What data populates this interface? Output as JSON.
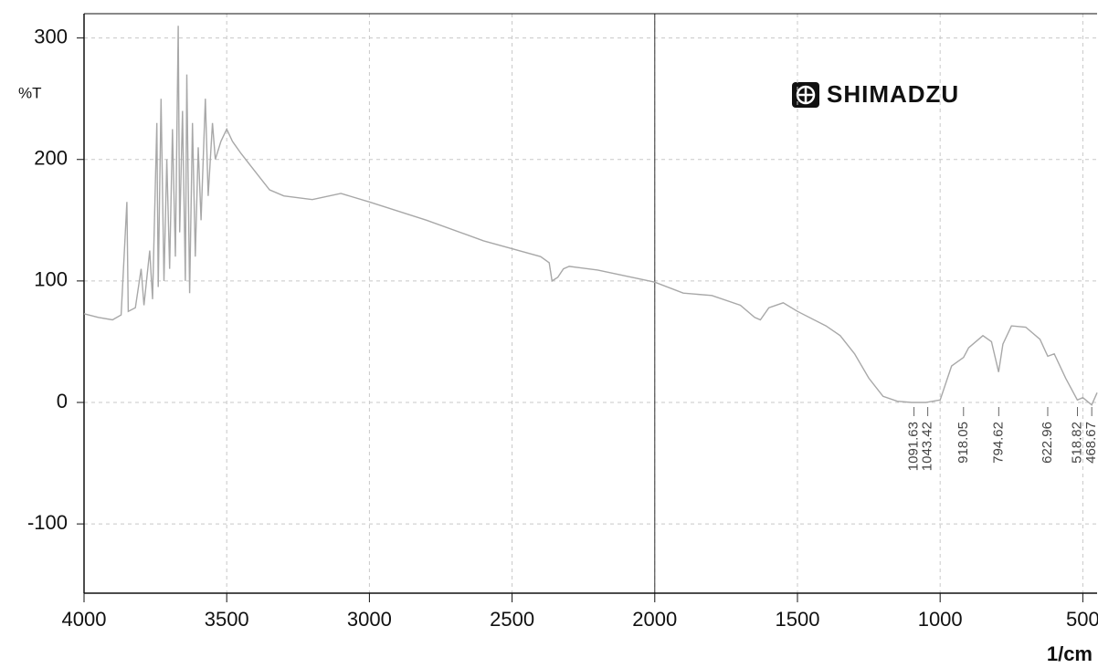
{
  "chart_data": {
    "type": "line",
    "y_label": "%T",
    "x_label": "1/cm",
    "logo": "SHIMADZU",
    "xlim": [
      4000,
      450
    ],
    "ylim": [
      -157,
      320
    ],
    "xticks": [
      4000,
      3500,
      3000,
      2500,
      2000,
      1500,
      1000,
      500
    ],
    "yticks": [
      -100,
      0,
      100,
      200,
      300
    ],
    "grid": true,
    "series": [
      {
        "color": "#a8a8a8",
        "x": [
          4000,
          3950,
          3900,
          3870,
          3850,
          3845,
          3820,
          3800,
          3790,
          3770,
          3760,
          3745,
          3740,
          3730,
          3720,
          3710,
          3700,
          3690,
          3680,
          3670,
          3665,
          3655,
          3645,
          3640,
          3630,
          3620,
          3610,
          3600,
          3590,
          3575,
          3565,
          3550,
          3540,
          3520,
          3500,
          3480,
          3450,
          3400,
          3350,
          3300,
          3200,
          3100,
          3000,
          2800,
          2600,
          2400,
          2370,
          2360,
          2340,
          2320,
          2300,
          2200,
          2000,
          1900,
          1800,
          1700,
          1650,
          1630,
          1600,
          1550,
          1500,
          1400,
          1350,
          1300,
          1250,
          1200,
          1150,
          1100,
          1050,
          1000,
          960,
          918,
          900,
          850,
          820,
          795,
          780,
          750,
          700,
          650,
          623,
          600,
          560,
          519,
          500,
          469,
          450
        ],
        "values": [
          73,
          70,
          68,
          72,
          165,
          75,
          78,
          110,
          80,
          125,
          85,
          230,
          95,
          250,
          100,
          200,
          110,
          225,
          120,
          310,
          140,
          240,
          100,
          270,
          90,
          230,
          120,
          210,
          150,
          250,
          170,
          230,
          200,
          215,
          225,
          215,
          205,
          190,
          175,
          170,
          167,
          172,
          165,
          150,
          133,
          120,
          115,
          100,
          103,
          110,
          112,
          109,
          99,
          90,
          88,
          80,
          70,
          68,
          78,
          82,
          75,
          63,
          55,
          40,
          20,
          5,
          1,
          0,
          0,
          2,
          30,
          37,
          45,
          55,
          50,
          25,
          48,
          63,
          62,
          52,
          38,
          40,
          20,
          2,
          4,
          -2,
          8
        ]
      }
    ],
    "peaks": [
      1091.63,
      1043.42,
      918.05,
      794.62,
      622.96,
      518.82,
      468.67
    ]
  }
}
